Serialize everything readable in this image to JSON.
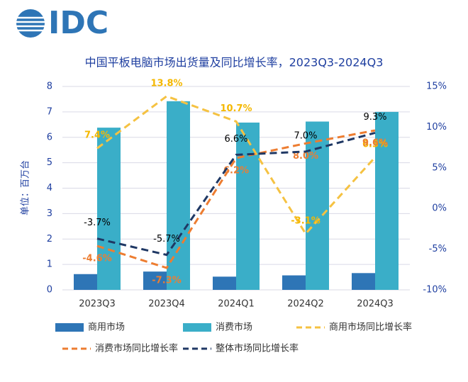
{
  "brand": "IDC",
  "chart_data": {
    "type": "bar",
    "title": "中国平板电脑市场出货量及同比增长率，2023Q3-2024Q3",
    "y_label": "单位：百万台",
    "categories": [
      "2023Q3",
      "2023Q4",
      "2024Q1",
      "2024Q2",
      "2024Q3"
    ],
    "ylim": [
      0,
      8
    ],
    "yticks": [
      0,
      1,
      2,
      3,
      4,
      5,
      6,
      7,
      8
    ],
    "y2lim": [
      -10,
      15
    ],
    "y2ticks": [
      {
        "value": -10,
        "label": "-10%"
      },
      {
        "value": -5,
        "label": "-5%"
      },
      {
        "value": 0,
        "label": "0%"
      },
      {
        "value": 5,
        "label": "5%"
      },
      {
        "value": 10,
        "label": "10%"
      },
      {
        "value": 15,
        "label": "15%"
      }
    ],
    "grid": true,
    "series": [
      {
        "name": "商用市场",
        "type": "bar",
        "color": "#2e75b6",
        "values": [
          0.62,
          0.72,
          0.52,
          0.57,
          0.66
        ]
      },
      {
        "name": "消费市场",
        "type": "bar",
        "color": "#3aaec8",
        "values": [
          6.38,
          7.42,
          6.58,
          6.62,
          7.0
        ]
      },
      {
        "name": "商用市场同比增长率",
        "type": "line",
        "axis": "y2",
        "color": "#f5c242",
        "label_color": "#f5b800",
        "label_offset": -18,
        "values": [
          7.4,
          13.8,
          10.7,
          -3.1,
          6.3
        ],
        "value_labels": [
          "7.4%",
          "13.8%",
          "10.7%",
          "-3.1%",
          "6.3%"
        ]
      },
      {
        "name": "消费市场同比增长率",
        "type": "line",
        "axis": "y2",
        "color": "#ed7d31",
        "label_color": "#ed7d31",
        "label_offset": 18,
        "values": [
          -4.6,
          -7.3,
          6.2,
          8.0,
          9.6
        ],
        "value_labels": [
          "-4.6%",
          "-7.3%",
          "6.2%",
          "8.0%",
          "9.6%"
        ]
      },
      {
        "name": "整体市场同比增长率",
        "type": "line",
        "axis": "y2",
        "color": "#1f3864",
        "label_color": "#000000",
        "label_offset": -22,
        "values": [
          -3.7,
          -5.7,
          6.6,
          7.0,
          9.3
        ],
        "value_labels": [
          "-3.7%",
          "-5.7%",
          "6.6%",
          "7.0%",
          "9.3%"
        ]
      }
    ]
  }
}
